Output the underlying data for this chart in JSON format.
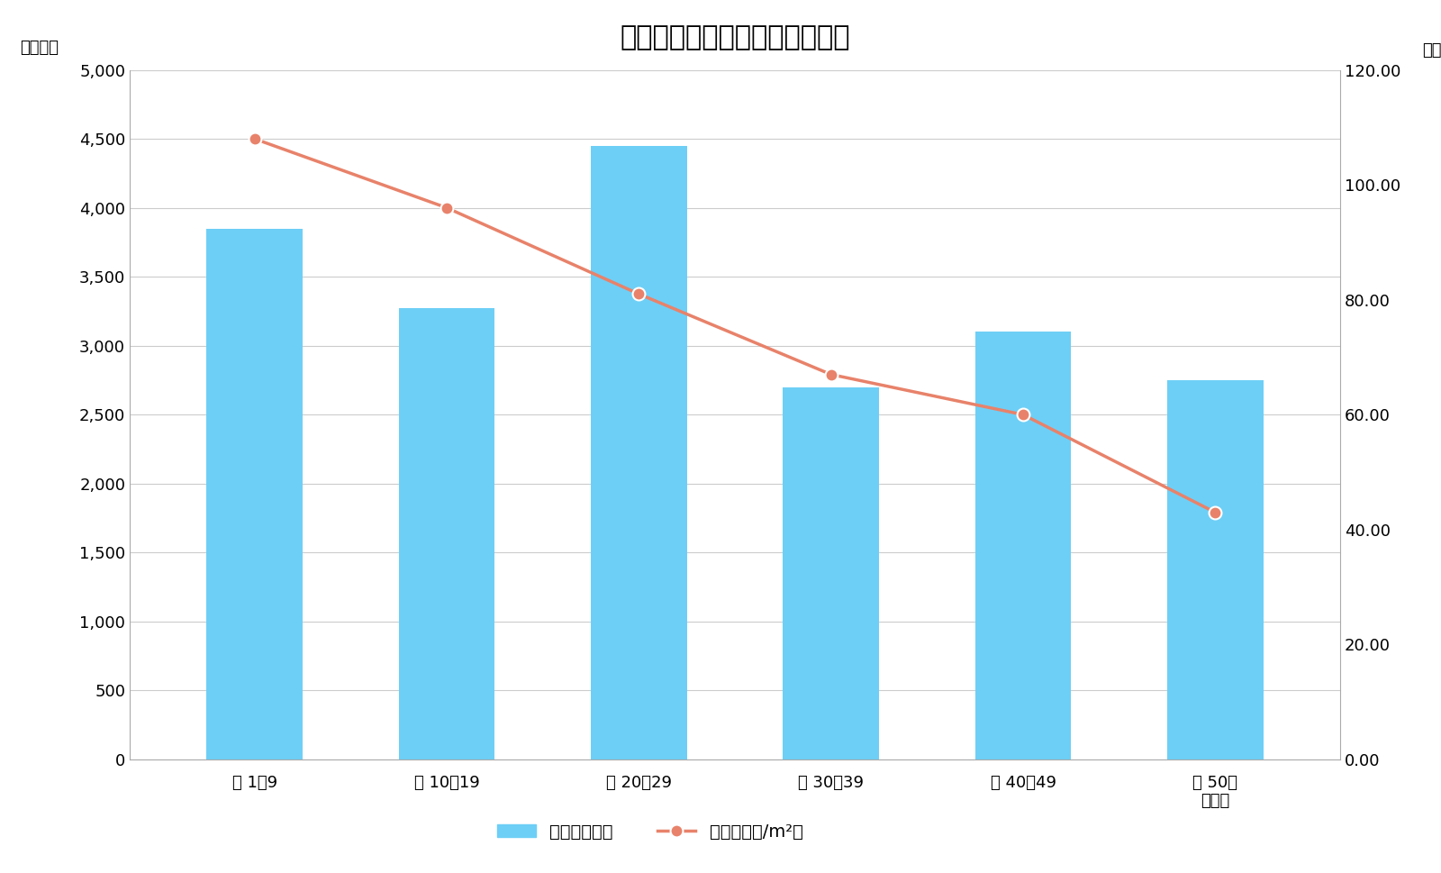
{
  "title": "練馬区築年数別マンション価格",
  "categories": [
    "築 1〜9",
    "築 10〜19",
    "築 20〜29",
    "築 30〜39",
    "築 40〜49",
    "築 50〜"
  ],
  "xlabel_note": "（年）",
  "ylabel_left": "（万円）",
  "ylabel_right": "（万円/m²）",
  "bar_values": [
    3850,
    3270,
    4450,
    2700,
    3100,
    2750
  ],
  "line_values": [
    108.0,
    96.0,
    81.0,
    67.0,
    60.0,
    43.0
  ],
  "bar_color": "#6DCFF6",
  "line_color": "#E8826A",
  "ylim_left": [
    0,
    5000
  ],
  "ylim_right": [
    0,
    120
  ],
  "yticks_left": [
    0,
    500,
    1000,
    1500,
    2000,
    2500,
    3000,
    3500,
    4000,
    4500,
    5000
  ],
  "yticks_right": [
    0,
    20.0,
    40.0,
    60.0,
    80.0,
    100.0,
    120.0
  ],
  "legend_bar_label": "価格（万円）",
  "legend_line_label": "単価（万円/m²）",
  "background_color": "#ffffff",
  "title_fontsize": 22,
  "axis_fontsize": 13,
  "tick_fontsize": 13,
  "legend_fontsize": 14,
  "bar_width": 0.5
}
